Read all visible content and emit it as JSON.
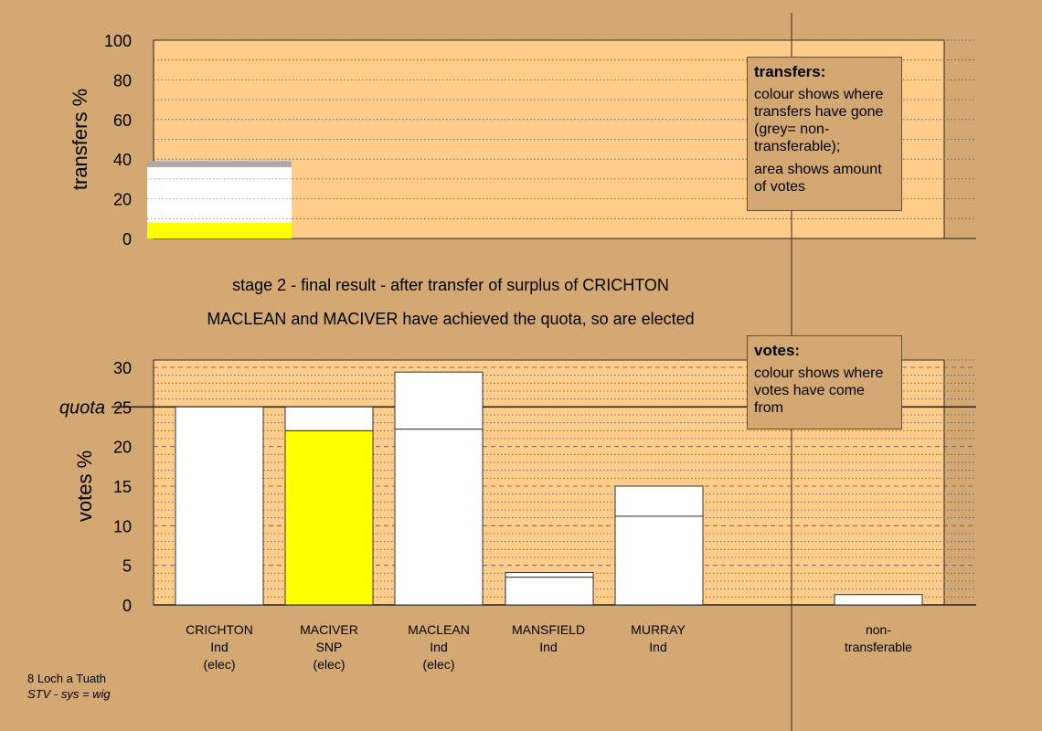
{
  "title": "stage 2 - final result - after transfer of surplus of CRICHTON",
  "subtitle": "MACLEAN and MACIVER have achieved the quota, so are elected",
  "footer": {
    "line1": "8 Loch a Tuath",
    "line2": "STV - sys = wig"
  },
  "colors": {
    "background": "#d3a872",
    "plot": "#ffcc8a",
    "snp": "#ffff00",
    "ind": "#ffffff",
    "nontransferable": "#aaaaaa"
  },
  "legend_transfers": {
    "title": "transfers:",
    "text1": "colour shows where transfers have gone (grey= non-transferable);",
    "text2": "area shows amount of votes"
  },
  "legend_votes": {
    "title": "votes:",
    "text1": "colour shows where votes have come from"
  },
  "candidates": [
    {
      "name": "CRICHTON",
      "party": "Ind",
      "status": "(elec)"
    },
    {
      "name": "MACIVER",
      "party": "SNP",
      "status": "(elec)"
    },
    {
      "name": "MACLEAN",
      "party": "Ind",
      "status": "(elec)"
    },
    {
      "name": "MANSFIELD",
      "party": "Ind",
      "status": ""
    },
    {
      "name": "MURRAY",
      "party": "Ind",
      "status": ""
    }
  ],
  "nontransferable_label": {
    "line1": "non-",
    "line2": "transferable"
  },
  "chart_data": [
    {
      "type": "bar",
      "name": "transfers",
      "ylabel": "transfers %",
      "ylim": [
        0,
        100
      ],
      "yticks": [
        0,
        20,
        40,
        60,
        80,
        100
      ],
      "grid": "dotted every 10",
      "categories": [
        "CRICHTON"
      ],
      "stacks": [
        {
          "category": "CRICHTON",
          "segments": [
            {
              "to": "MACIVER",
              "color": "#ffff00",
              "value": 8
            },
            {
              "to": "MACLEAN",
              "color": "#ffffff",
              "value": 21
            },
            {
              "to": "MANSFIELD",
              "color": "#ffffff",
              "value": 1
            },
            {
              "to": "MURRAY",
              "color": "#ffffff",
              "value": 6
            },
            {
              "to": "non-transferable",
              "color": "#aaaaaa",
              "value": 3
            }
          ]
        }
      ]
    },
    {
      "type": "bar",
      "name": "votes",
      "ylabel": "votes %",
      "ylim": [
        0,
        30
      ],
      "yticks": [
        0,
        5,
        10,
        15,
        20,
        25,
        30
      ],
      "quota": 25,
      "quota_label": "quota",
      "grid": "dotted every 1, dashed every 5",
      "categories": [
        "CRICHTON",
        "MACIVER",
        "MACLEAN",
        "MANSFIELD",
        "MURRAY",
        "non-transferable"
      ],
      "stacks": [
        {
          "category": "CRICHTON",
          "segments": [
            {
              "color": "#ffffff",
              "value": 25
            }
          ]
        },
        {
          "category": "MACIVER",
          "segments": [
            {
              "color": "#ffff00",
              "value": 22
            },
            {
              "color": "#ffffff",
              "value": 3
            }
          ]
        },
        {
          "category": "MACLEAN",
          "segments": [
            {
              "color": "#ffffff",
              "value": 22.2
            },
            {
              "color": "#ffffff",
              "value": 7.2
            }
          ]
        },
        {
          "category": "MANSFIELD",
          "segments": [
            {
              "color": "#ffffff",
              "value": 3.5
            },
            {
              "color": "#ffffff",
              "value": 0.6
            }
          ]
        },
        {
          "category": "MURRAY",
          "segments": [
            {
              "color": "#ffffff",
              "value": 11.2
            },
            {
              "color": "#ffffff",
              "value": 3.8
            }
          ]
        },
        {
          "category": "non-transferable",
          "segments": [
            {
              "color": "#ffffff",
              "value": 1.3
            }
          ]
        }
      ]
    }
  ]
}
